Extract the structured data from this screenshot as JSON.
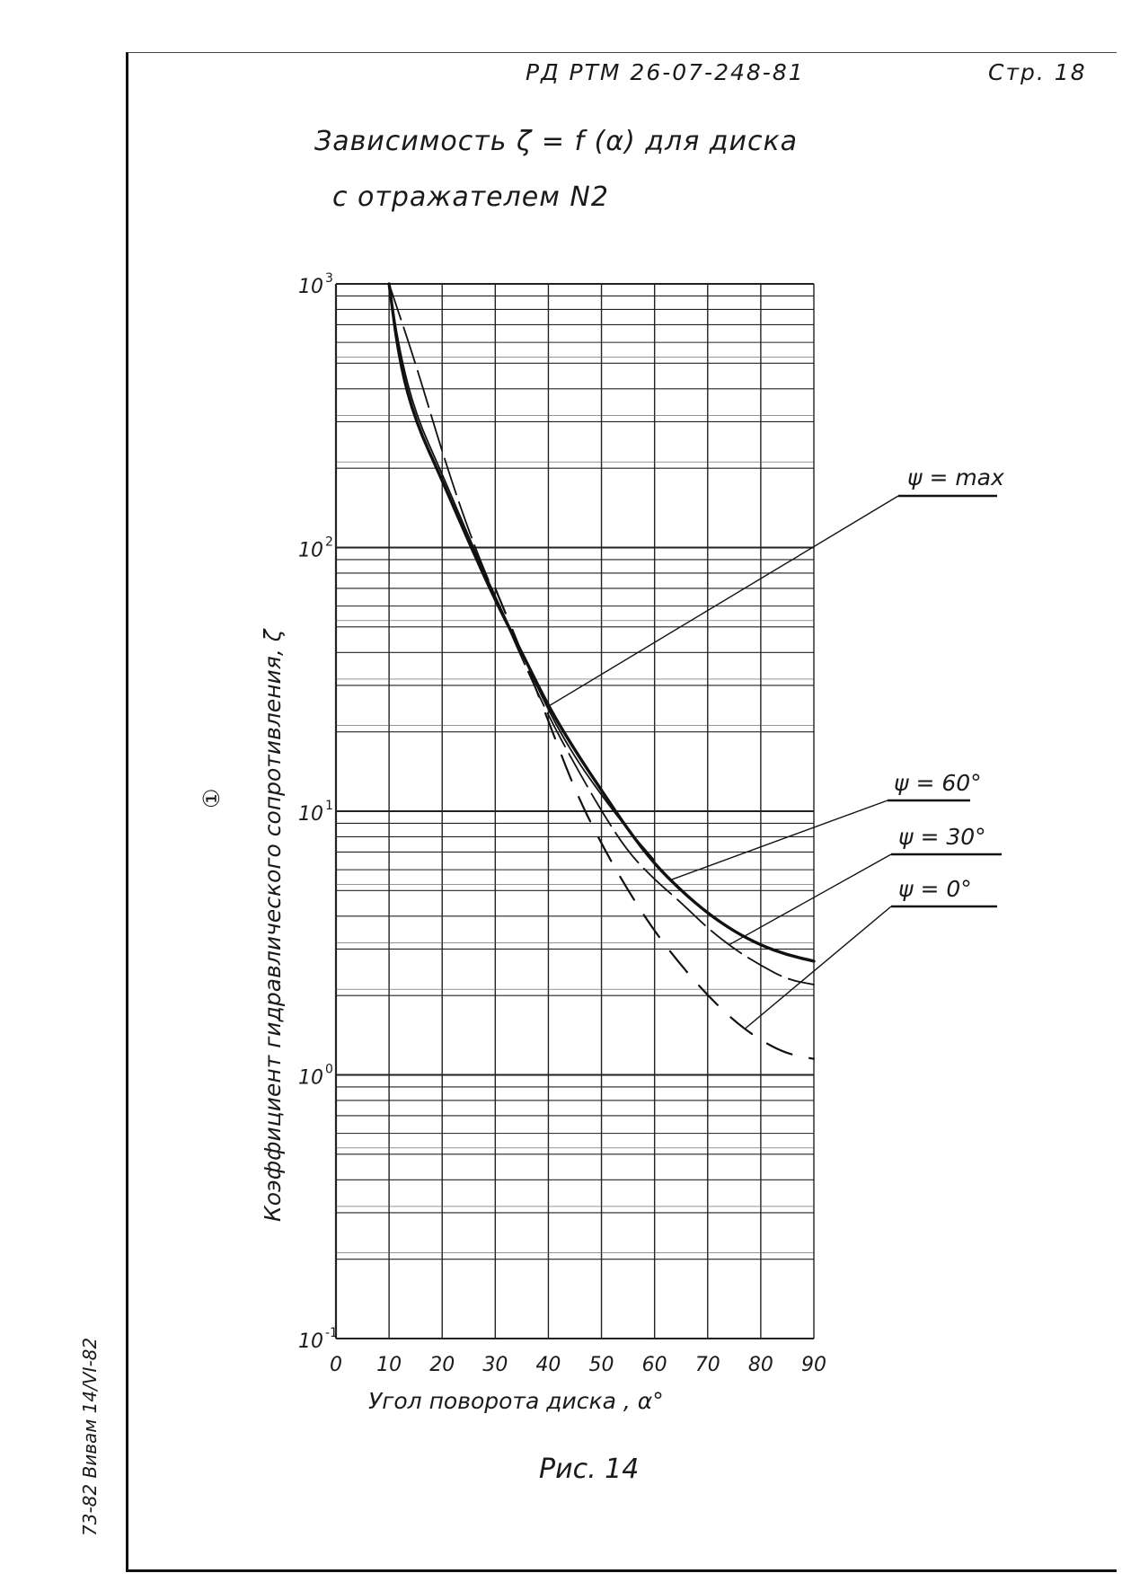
{
  "header": {
    "doc_code": "РД РТМ 26-07-248-81",
    "page": "Стр. 18"
  },
  "title": {
    "line1": "Зависимость ζ = f (α) для диска",
    "line2": "с отражателем N2"
  },
  "caption": "Рис. 14",
  "side_note": "73-82 Вивам 14/VI-82",
  "chart_data": {
    "type": "line",
    "xlabel": "Угол поворота диска , α°",
    "ylabel": "Коэффициент гидравлического сопротивления, ζ",
    "ylabel_marker": "①",
    "x_ticks": [
      "0",
      "10",
      "20",
      "30",
      "40",
      "50",
      "60",
      "70",
      "80",
      "90"
    ],
    "y_ticks": [
      {
        "base": "10",
        "exp": "3",
        "value": 1000
      },
      {
        "base": "10",
        "exp": "2",
        "value": 100
      },
      {
        "base": "10",
        "exp": "1",
        "value": 10
      },
      {
        "base": "10",
        "exp": "0",
        "value": 1
      },
      {
        "base": "10",
        "exp": "-1",
        "value": 0.1
      }
    ],
    "xlim": [
      0,
      90
    ],
    "ylim": [
      0.1,
      1000
    ],
    "y_scale": "log",
    "grid": true,
    "series": [
      {
        "name": "ψ = max",
        "style": "solid-thick",
        "x": [
          10,
          12,
          15,
          20,
          25,
          30,
          35,
          40,
          45,
          50,
          55,
          60,
          65,
          70,
          75,
          80,
          85,
          90
        ],
        "y": [
          1000,
          500,
          300,
          180,
          105,
          63,
          40,
          25,
          17,
          12,
          8.5,
          6.3,
          5.0,
          4.1,
          3.5,
          3.1,
          2.85,
          2.7
        ]
      },
      {
        "name": "ψ = 60°",
        "style": "solid-thin",
        "x": [
          10,
          12,
          15,
          20,
          25,
          30,
          35,
          40,
          45,
          50,
          55,
          60
        ],
        "y": [
          1000,
          550,
          320,
          190,
          110,
          65,
          40,
          24,
          16,
          11.5,
          8.5,
          6.5
        ]
      },
      {
        "name": "ψ = 30°",
        "style": "dashed-long",
        "x": [
          10,
          15,
          20,
          25,
          30,
          35,
          40,
          45,
          50,
          55,
          60,
          65,
          70,
          75,
          80,
          85,
          90
        ],
        "y": [
          1000,
          500,
          230,
          115,
          65,
          38,
          23,
          15,
          10,
          7,
          5.5,
          4.5,
          3.6,
          3.0,
          2.6,
          2.3,
          2.2
        ]
      },
      {
        "name": "ψ = 0°",
        "style": "dashed-medium",
        "x": [
          30,
          35,
          40,
          45,
          50,
          55,
          60,
          65,
          70,
          75,
          80,
          85,
          90
        ],
        "y": [
          70,
          40,
          22,
          12,
          7.5,
          5.0,
          3.5,
          2.6,
          2.0,
          1.6,
          1.35,
          1.2,
          1.15
        ]
      }
    ],
    "annotations": [
      {
        "text": "ψ = max"
      },
      {
        "text": "ψ = 60°"
      },
      {
        "text": "ψ = 30°"
      },
      {
        "text": "ψ = 0°"
      }
    ]
  }
}
